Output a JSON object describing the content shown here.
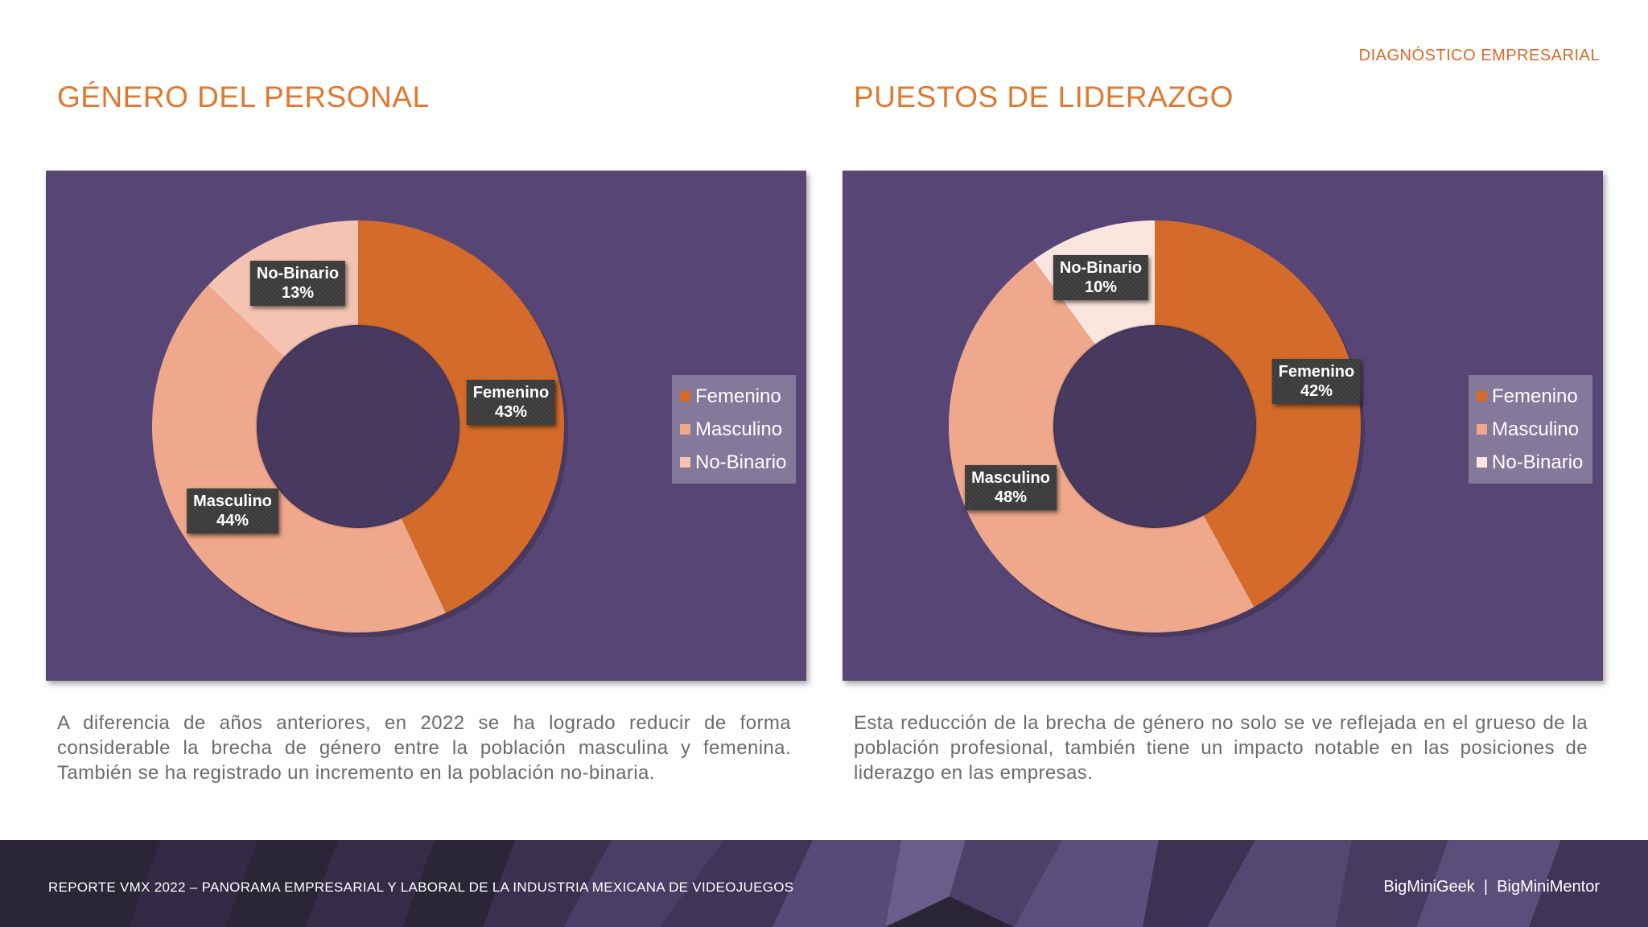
{
  "header": {
    "tag": "DIAGNÓSTICO EMPRESARIAL"
  },
  "colors": {
    "accent": "#e0782f",
    "panel": "#574675",
    "femenino": "#d46b2a",
    "masculino": "#f0a88c",
    "no_binario": "#f4c3b2",
    "no_binario_legend": "#fbe6df"
  },
  "sections": [
    {
      "title": "GÉNERO DEL PERSONAL",
      "description": "A diferencia de años anteriores, en 2022 se ha logrado reducir de forma considerable la brecha de género entre la población masculina y femenina. También se ha registrado un incremento en la población no-binaria."
    },
    {
      "title": "PUESTOS DE LIDERAZGO",
      "description": "Esta reducción de la brecha de género no solo se ve reflejada en el grueso de la población profesional, también tiene un impacto notable en las posiciones de liderazgo en las empresas."
    }
  ],
  "chart_data": [
    {
      "type": "pie",
      "donut": true,
      "categories": [
        "Femenino",
        "Masculino",
        "No-Binario"
      ],
      "values": [
        43,
        44,
        13
      ],
      "data_labels": [
        "Femenino\n43%",
        "Masculino\n44%",
        "No-Binario\n13%"
      ],
      "slice_colors": [
        "#d46b2a",
        "#f0a88c",
        "#f4c3b2"
      ],
      "legend": {
        "position": "right",
        "entries": [
          "Femenino",
          "Masculino",
          "No-Binario"
        ],
        "colors": [
          "#d46b2a",
          "#f0a88c",
          "#f4c3b2"
        ]
      }
    },
    {
      "type": "pie",
      "donut": true,
      "categories": [
        "Femenino",
        "Masculino",
        "No-Binario"
      ],
      "values": [
        42,
        48,
        10
      ],
      "data_labels": [
        "Femenino\n42%",
        "Masculino\n48%",
        "No-Binario\n10%"
      ],
      "slice_colors": [
        "#d46b2a",
        "#f0a88c",
        "#fbe6df"
      ],
      "legend": {
        "position": "right",
        "entries": [
          "Femenino",
          "Masculino",
          "No-Binario"
        ],
        "colors": [
          "#d46b2a",
          "#f0a88c",
          "#fbe6df"
        ]
      }
    }
  ],
  "footer": {
    "left": "REPORTE VMX 2022 – PANORAMA EMPRESARIAL Y LABORAL DE LA INDUSTRIA MEXICANA DE VIDEOJUEGOS",
    "right": "BigMiniGeek  |  BigMiniMentor"
  }
}
